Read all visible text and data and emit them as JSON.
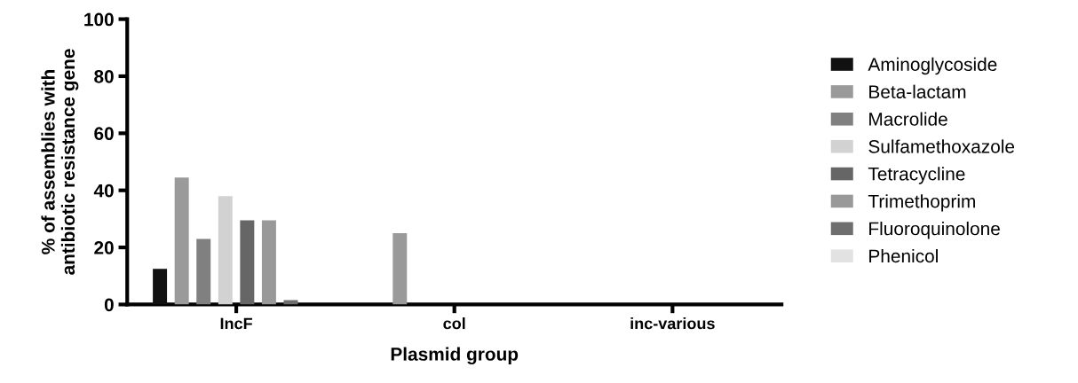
{
  "chart_data": {
    "type": "bar",
    "xlabel": "Plasmid group",
    "ylabel": "% of assemblies with\nantibiotic resistance gene",
    "categories": [
      "IncF",
      "col",
      "inc-various"
    ],
    "series": [
      {
        "name": "Aminoglycoside",
        "color": "#111111",
        "values": [
          12.5,
          0,
          0
        ]
      },
      {
        "name": "Beta-lactam",
        "color": "#9a9a9a",
        "values": [
          44.5,
          25,
          0
        ]
      },
      {
        "name": "Macrolide",
        "color": "#808080",
        "values": [
          23,
          0,
          0
        ]
      },
      {
        "name": "Sulfamethoxazole",
        "color": "#d2d2d2",
        "values": [
          38,
          0,
          0
        ]
      },
      {
        "name": "Tetracycline",
        "color": "#666666",
        "values": [
          29.5,
          0,
          0
        ]
      },
      {
        "name": "Trimethoprim",
        "color": "#999999",
        "values": [
          29.5,
          0,
          0
        ]
      },
      {
        "name": "Fluoroquinolone",
        "color": "#6e6e6e",
        "values": [
          1.5,
          0,
          0
        ]
      },
      {
        "name": "Phenicol",
        "color": "#e2e2e2",
        "values": [
          0,
          0,
          0
        ]
      }
    ],
    "ylim": [
      0,
      100
    ],
    "yticks": [
      0,
      20,
      40,
      60,
      80,
      100
    ],
    "grid": false,
    "legend": "right"
  }
}
